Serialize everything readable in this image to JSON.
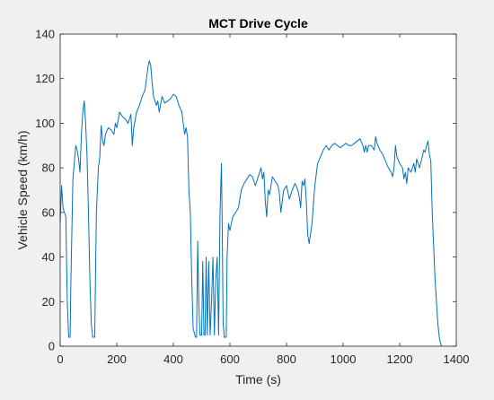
{
  "chart_data": {
    "type": "line",
    "title": "MCT Drive Cycle",
    "xlabel": "Time (s)",
    "ylabel": "Vehicle Speed (km/h)",
    "xlim": [
      0,
      1400
    ],
    "ylim": [
      0,
      140
    ],
    "x_ticks": [
      0,
      200,
      400,
      600,
      800,
      1000,
      1200,
      1400
    ],
    "y_ticks": [
      0,
      20,
      40,
      60,
      80,
      100,
      120,
      140
    ],
    "grid": false,
    "colors": {
      "line": "#0072bd",
      "figure_background": "#f0f0f0",
      "axes_background": "#ffffff",
      "axis": "#262626"
    },
    "series": [
      {
        "points": [
          [
            0,
            55
          ],
          [
            5,
            72
          ],
          [
            10,
            62
          ],
          [
            15,
            60
          ],
          [
            20,
            58
          ],
          [
            25,
            20
          ],
          [
            30,
            4
          ],
          [
            35,
            4
          ],
          [
            38,
            30
          ],
          [
            45,
            75
          ],
          [
            55,
            90
          ],
          [
            60,
            88
          ],
          [
            65,
            84
          ],
          [
            70,
            78
          ],
          [
            75,
            95
          ],
          [
            80,
            105
          ],
          [
            85,
            110
          ],
          [
            90,
            100
          ],
          [
            95,
            85
          ],
          [
            100,
            60
          ],
          [
            105,
            30
          ],
          [
            110,
            10
          ],
          [
            115,
            4
          ],
          [
            122,
            4
          ],
          [
            128,
            60
          ],
          [
            135,
            80
          ],
          [
            140,
            85
          ],
          [
            145,
            99
          ],
          [
            150,
            92
          ],
          [
            155,
            90
          ],
          [
            160,
            95
          ],
          [
            170,
            98
          ],
          [
            180,
            97
          ],
          [
            190,
            95
          ],
          [
            195,
            100
          ],
          [
            200,
            98
          ],
          [
            210,
            105
          ],
          [
            220,
            103
          ],
          [
            230,
            102
          ],
          [
            240,
            100
          ],
          [
            250,
            104
          ],
          [
            255,
            90
          ],
          [
            260,
            98
          ],
          [
            270,
            105
          ],
          [
            280,
            108
          ],
          [
            290,
            112
          ],
          [
            300,
            115
          ],
          [
            305,
            120
          ],
          [
            310,
            125
          ],
          [
            315,
            128
          ],
          [
            320,
            126
          ],
          [
            325,
            118
          ],
          [
            330,
            112
          ],
          [
            340,
            108
          ],
          [
            345,
            110
          ],
          [
            350,
            105
          ],
          [
            360,
            112
          ],
          [
            370,
            109
          ],
          [
            380,
            110
          ],
          [
            390,
            111
          ],
          [
            400,
            113
          ],
          [
            410,
            112
          ],
          [
            420,
            108
          ],
          [
            430,
            105
          ],
          [
            440,
            95
          ],
          [
            445,
            98
          ],
          [
            450,
            94
          ],
          [
            455,
            70
          ],
          [
            460,
            60
          ],
          [
            465,
            30
          ],
          [
            470,
            8
          ],
          [
            478,
            4
          ],
          [
            482,
            4
          ],
          [
            486,
            47
          ],
          [
            490,
            20
          ],
          [
            494,
            5
          ],
          [
            500,
            5
          ],
          [
            504,
            38
          ],
          [
            508,
            5
          ],
          [
            512,
            5
          ],
          [
            516,
            40
          ],
          [
            520,
            5
          ],
          [
            525,
            38
          ],
          [
            530,
            5
          ],
          [
            535,
            20
          ],
          [
            540,
            40
          ],
          [
            545,
            5
          ],
          [
            550,
            30
          ],
          [
            555,
            40
          ],
          [
            560,
            5
          ],
          [
            565,
            60
          ],
          [
            570,
            82
          ],
          [
            573,
            50
          ],
          [
            576,
            10
          ],
          [
            580,
            4
          ],
          [
            587,
            4
          ],
          [
            590,
            40
          ],
          [
            595,
            55
          ],
          [
            600,
            52
          ],
          [
            610,
            58
          ],
          [
            620,
            60
          ],
          [
            630,
            62
          ],
          [
            640,
            70
          ],
          [
            650,
            73
          ],
          [
            660,
            75
          ],
          [
            670,
            77
          ],
          [
            680,
            76
          ],
          [
            690,
            72
          ],
          [
            700,
            76
          ],
          [
            710,
            80
          ],
          [
            715,
            75
          ],
          [
            720,
            78
          ],
          [
            725,
            65
          ],
          [
            730,
            58
          ],
          [
            735,
            70
          ],
          [
            740,
            68
          ],
          [
            745,
            72
          ],
          [
            750,
            76
          ],
          [
            760,
            74
          ],
          [
            770,
            72
          ],
          [
            775,
            68
          ],
          [
            780,
            60
          ],
          [
            790,
            70
          ],
          [
            800,
            72
          ],
          [
            810,
            66
          ],
          [
            820,
            70
          ],
          [
            830,
            73
          ],
          [
            840,
            70
          ],
          [
            845,
            67
          ],
          [
            850,
            62
          ],
          [
            855,
            74
          ],
          [
            860,
            72
          ],
          [
            865,
            75
          ],
          [
            870,
            65
          ],
          [
            875,
            50
          ],
          [
            880,
            46
          ],
          [
            890,
            55
          ],
          [
            900,
            72
          ],
          [
            910,
            82
          ],
          [
            920,
            85
          ],
          [
            930,
            88
          ],
          [
            940,
            90
          ],
          [
            950,
            88
          ],
          [
            960,
            90
          ],
          [
            970,
            91
          ],
          [
            980,
            90
          ],
          [
            990,
            89
          ],
          [
            1000,
            90
          ],
          [
            1010,
            91
          ],
          [
            1020,
            90
          ],
          [
            1030,
            90
          ],
          [
            1040,
            91
          ],
          [
            1050,
            92
          ],
          [
            1060,
            93
          ],
          [
            1070,
            90
          ],
          [
            1075,
            87
          ],
          [
            1080,
            90
          ],
          [
            1085,
            87
          ],
          [
            1090,
            90
          ],
          [
            1100,
            90
          ],
          [
            1110,
            88
          ],
          [
            1115,
            94
          ],
          [
            1120,
            91
          ],
          [
            1130,
            88
          ],
          [
            1140,
            86
          ],
          [
            1150,
            83
          ],
          [
            1160,
            80
          ],
          [
            1170,
            78
          ],
          [
            1175,
            76
          ],
          [
            1180,
            80
          ],
          [
            1185,
            90
          ],
          [
            1190,
            85
          ],
          [
            1200,
            82
          ],
          [
            1210,
            80
          ],
          [
            1215,
            75
          ],
          [
            1220,
            78
          ],
          [
            1225,
            73
          ],
          [
            1230,
            80
          ],
          [
            1240,
            78
          ],
          [
            1250,
            82
          ],
          [
            1255,
            78
          ],
          [
            1260,
            84
          ],
          [
            1270,
            80
          ],
          [
            1280,
            85
          ],
          [
            1285,
            88
          ],
          [
            1290,
            87
          ],
          [
            1295,
            90
          ],
          [
            1300,
            92
          ],
          [
            1305,
            86
          ],
          [
            1310,
            83
          ],
          [
            1315,
            60
          ],
          [
            1320,
            45
          ],
          [
            1325,
            30
          ],
          [
            1330,
            20
          ],
          [
            1335,
            10
          ],
          [
            1340,
            4
          ],
          [
            1343,
            2
          ],
          [
            1348,
            0
          ]
        ]
      }
    ]
  }
}
